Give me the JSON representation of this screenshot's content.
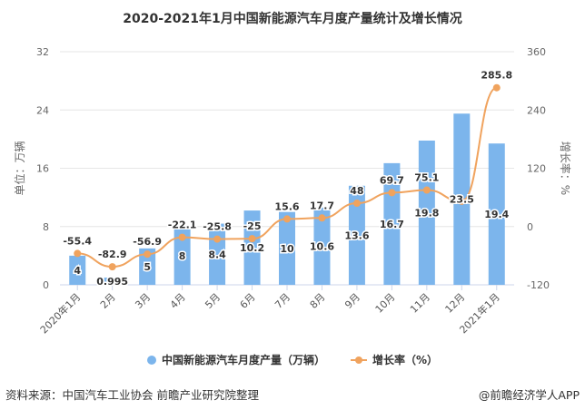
{
  "chart_data": {
    "type": "bar+line",
    "title": "2020-2021年1月中国新能源汽车月度产量统计及增长情况",
    "categories": [
      "2020年1月",
      "2月",
      "3月",
      "4月",
      "5月",
      "6月",
      "7月",
      "8月",
      "9月",
      "10月",
      "11月",
      "12月",
      "2021年1月"
    ],
    "series": [
      {
        "name": "中国新能源汽车月度产量（万辆）",
        "type": "bar",
        "axis": "left",
        "color": "#7cb5ec",
        "values": [
          4,
          0.995,
          5,
          8,
          8.4,
          10.2,
          10,
          10.6,
          13.6,
          16.7,
          19.8,
          23.5,
          19.4
        ],
        "labels": [
          "4",
          "0.995",
          "5",
          "8",
          "8.4",
          "10.2",
          "10",
          "10.6",
          "13.6",
          "16.7",
          "19.8",
          "23.5",
          "19.4"
        ]
      },
      {
        "name": "增长率（%）",
        "type": "line",
        "axis": "right",
        "color": "#f0a35e",
        "values": [
          -55.4,
          -82.9,
          -56.9,
          -22.1,
          -25.8,
          -25,
          15.6,
          17.7,
          48,
          69.7,
          75.1,
          52,
          285.8
        ],
        "labels": [
          "-55.4",
          "-82.9",
          "-56.9",
          "-22.1",
          "-25.8",
          "-25",
          "15.6",
          "17.7",
          "48",
          "69.7",
          "75.1",
          "",
          "285.8"
        ]
      }
    ],
    "ylabel": "单位：万辆",
    "y2label": "增长率：%",
    "ylim": [
      0,
      32
    ],
    "yticks": [
      "0",
      "8",
      "16",
      "24",
      "32"
    ],
    "y2lim": [
      -120,
      360
    ],
    "y2ticks": [
      "-120",
      "0",
      "120",
      "240",
      "360"
    ],
    "grid": true,
    "legend": "bottom"
  },
  "footer": {
    "source": "资料来源：中国汽车工业协会 前瞻产业研究院整理",
    "credit": "@前瞻经济学人APP"
  }
}
